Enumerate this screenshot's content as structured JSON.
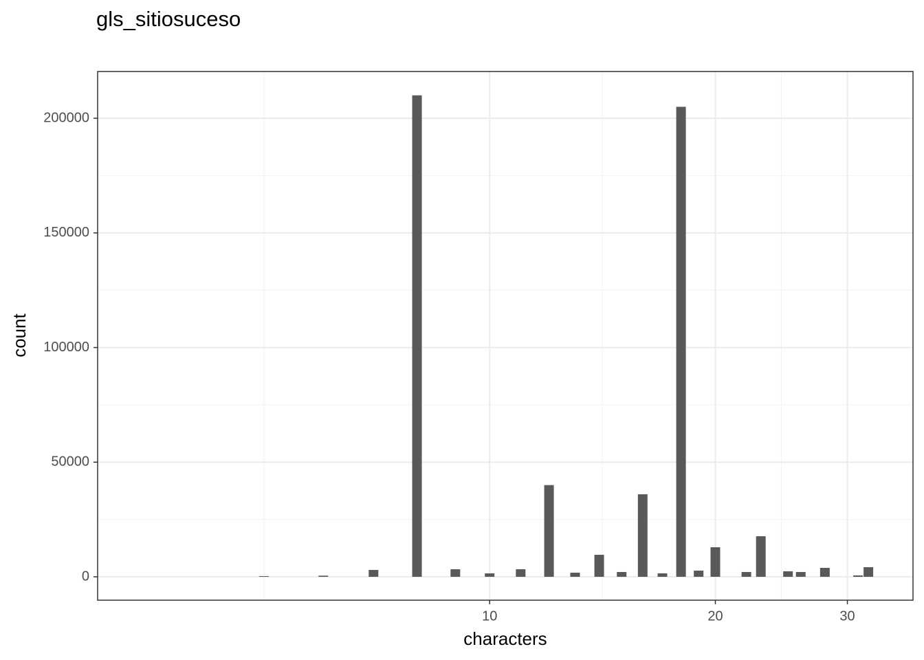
{
  "chart_data": {
    "type": "bar",
    "title": "gls_sitiosuceso",
    "x_label": "characters",
    "y_label": "count",
    "x": [
      5,
      6,
      7,
      8,
      9,
      10,
      11,
      12,
      13,
      14,
      15,
      16,
      17,
      18,
      19,
      20,
      22,
      23,
      25,
      26,
      28,
      31,
      32
    ],
    "values": [
      300,
      500,
      3000,
      210000,
      3300,
      1500,
      3300,
      40000,
      1800,
      9600,
      2100,
      36000,
      1500,
      205000,
      2700,
      12900,
      2100,
      17700,
      2400,
      2100,
      3900,
      600,
      4200
    ],
    "color": "#595959",
    "x_log": true,
    "xlim": [
      3,
      36.7
    ],
    "xticks": [
      10,
      20,
      30
    ],
    "xminorticks": [
      5,
      14.14,
      24.49
    ],
    "ylim": [
      -10200,
      220400
    ],
    "yticks": [
      0,
      50000,
      100000,
      150000,
      200000
    ],
    "yminorticks": [
      25000,
      75000,
      125000,
      175000
    ],
    "grid": true
  }
}
